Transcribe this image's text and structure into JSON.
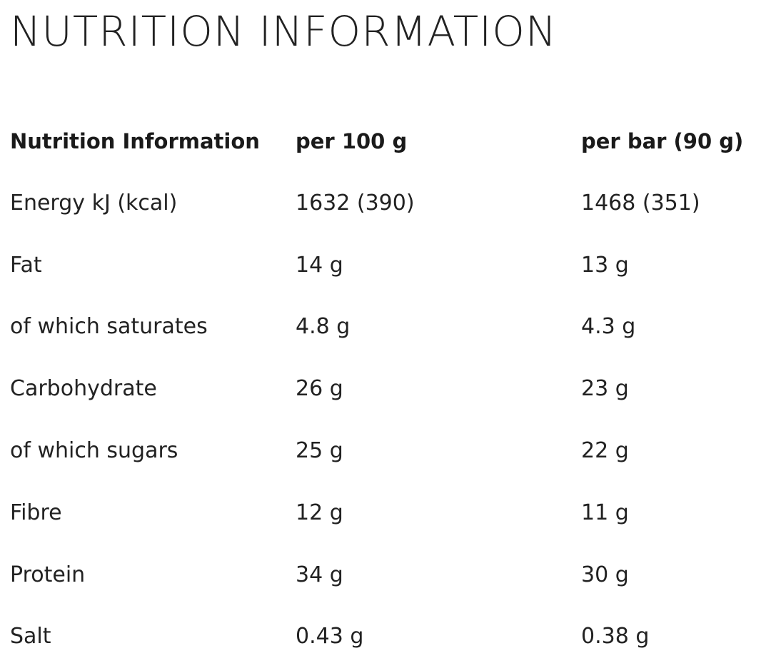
{
  "title": "NUTRITION INFORMATION",
  "table": {
    "headers": [
      "Nutrition Information",
      "per 100 g",
      "per bar (90 g)"
    ],
    "rows": [
      {
        "nutrient": "Energy kJ (kcal)",
        "per_100g": "1632 (390)",
        "per_bar": "1468 (351)"
      },
      {
        "nutrient": "Fat",
        "per_100g": "14 g",
        "per_bar": "13 g"
      },
      {
        "nutrient": "of which saturates",
        "per_100g": "4.8 g",
        "per_bar": "4.3 g"
      },
      {
        "nutrient": "Carbohydrate",
        "per_100g": "26 g",
        "per_bar": "23 g"
      },
      {
        "nutrient": "of which sugars",
        "per_100g": "25 g",
        "per_bar": "22 g"
      },
      {
        "nutrient": "Fibre",
        "per_100g": "12 g",
        "per_bar": "11 g"
      },
      {
        "nutrient": "Protein",
        "per_100g": "34 g",
        "per_bar": "30 g"
      },
      {
        "nutrient": "Salt",
        "per_100g": "0.43 g",
        "per_bar": "0.38 g"
      }
    ]
  }
}
